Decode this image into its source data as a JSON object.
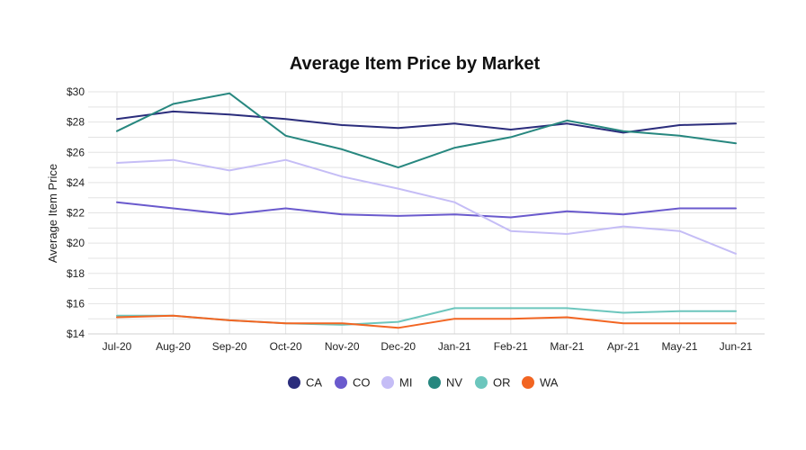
{
  "chart_data": {
    "type": "line",
    "title": "Average Item Price by Market",
    "xlabel": "",
    "ylabel": "Average Item Price",
    "y_prefix": "$",
    "ylim": [
      14,
      30
    ],
    "yticks": [
      14,
      16,
      18,
      20,
      22,
      24,
      26,
      28,
      30
    ],
    "grid": true,
    "legend_position": "bottom",
    "categories": [
      "Jul-20",
      "Aug-20",
      "Sep-20",
      "Oct-20",
      "Nov-20",
      "Dec-20",
      "Jan-21",
      "Feb-21",
      "Mar-21",
      "Apr-21",
      "May-21",
      "Jun-21"
    ],
    "series": [
      {
        "name": "CA",
        "color": "#2b2d7c",
        "values": [
          28.2,
          28.7,
          28.5,
          28.2,
          27.8,
          27.6,
          27.9,
          27.5,
          27.9,
          27.3,
          27.8,
          27.9
        ]
      },
      {
        "name": "CO",
        "color": "#6a5acd",
        "values": [
          22.7,
          22.3,
          21.9,
          22.3,
          21.9,
          21.8,
          21.9,
          21.7,
          22.1,
          21.9,
          22.3,
          22.3
        ]
      },
      {
        "name": "MI",
        "color": "#c5bdf6",
        "values": [
          25.3,
          25.5,
          24.8,
          25.5,
          24.4,
          23.6,
          22.7,
          20.8,
          20.6,
          21.1,
          20.8,
          19.3
        ]
      },
      {
        "name": "NV",
        "color": "#27877f",
        "values": [
          27.4,
          29.2,
          29.9,
          27.1,
          26.2,
          25.0,
          26.3,
          27.0,
          28.1,
          27.4,
          27.1,
          26.6
        ]
      },
      {
        "name": "OR",
        "color": "#6cc6bd",
        "values": [
          15.2,
          15.2,
          14.9,
          14.7,
          14.6,
          14.8,
          15.7,
          15.7,
          15.7,
          15.4,
          15.5,
          15.5
        ]
      },
      {
        "name": "WA",
        "color": "#f26522",
        "values": [
          15.1,
          15.2,
          14.9,
          14.7,
          14.7,
          14.4,
          15.0,
          15.0,
          15.1,
          14.7,
          14.7,
          14.7
        ]
      }
    ]
  }
}
